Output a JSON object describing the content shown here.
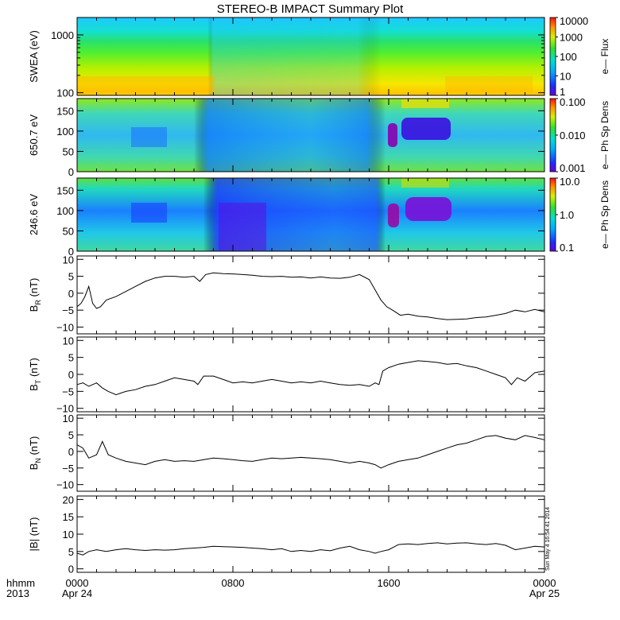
{
  "title": "STEREO-B IMPACT Summary Plot",
  "footer": {
    "corner_top": "hhmm",
    "corner_bottom": "2013",
    "stamp": "Sun May  4 16:54:41 2014"
  },
  "colors": {
    "line": "#000000",
    "frame": "#000000"
  },
  "chart_data": [
    {
      "type": "heatmap",
      "ylabel": "SWEA (eV)",
      "yscale": "log",
      "ylim": [
        90,
        2000
      ],
      "yticks": [
        {
          "v": 100,
          "t": "100"
        },
        {
          "v": 1000,
          "t": "1000"
        }
      ],
      "colorbar": {
        "label": "e— Flux",
        "scale": "log",
        "range": [
          1,
          10000
        ],
        "ticks": [
          {
            "v": 1,
            "t": "1"
          },
          {
            "v": 10,
            "t": "10"
          },
          {
            "v": 100,
            "t": "100"
          },
          {
            "v": 1000,
            "t": "1000"
          },
          {
            "v": 10000,
            "t": "10000"
          }
        ]
      }
    },
    {
      "type": "heatmap",
      "ylabel": "650.7 eV",
      "ylim": [
        0,
        180
      ],
      "yticks": [
        {
          "v": 0,
          "t": "0"
        },
        {
          "v": 50,
          "t": "50"
        },
        {
          "v": 100,
          "t": "100"
        },
        {
          "v": 150,
          "t": "150"
        }
      ],
      "colorbar": {
        "label": "e— Ph Sp Dens",
        "scale": "log",
        "range": [
          0.001,
          0.1
        ],
        "ticks": [
          {
            "v": 0.001,
            "t": "0.001"
          },
          {
            "v": 0.01,
            "t": "0.010"
          },
          {
            "v": 0.1,
            "t": "0.100"
          }
        ]
      }
    },
    {
      "type": "heatmap",
      "ylabel": "246.6 eV",
      "ylim": [
        0,
        180
      ],
      "yticks": [
        {
          "v": 0,
          "t": "0"
        },
        {
          "v": 50,
          "t": "50"
        },
        {
          "v": 100,
          "t": "100"
        },
        {
          "v": 150,
          "t": "150"
        }
      ],
      "colorbar": {
        "label": "e— Ph Sp Dens",
        "scale": "log",
        "range": [
          0.1,
          10
        ],
        "ticks": [
          {
            "v": 0.1,
            "t": "0.1"
          },
          {
            "v": 1,
            "t": "1.0"
          },
          {
            "v": 10,
            "t": "10.0"
          }
        ]
      }
    },
    {
      "type": "line",
      "ylabel": "B",
      "ysub": "R",
      "yunit": " (nT)",
      "ylim": [
        -12,
        11
      ],
      "yticks": [
        {
          "v": -10,
          "t": "−10"
        },
        {
          "v": -5,
          "t": "−5"
        },
        {
          "v": 0,
          "t": "0"
        },
        {
          "v": 5,
          "t": "5"
        },
        {
          "v": 10,
          "t": "10"
        }
      ],
      "x": [
        0,
        0.2,
        0.4,
        0.6,
        0.8,
        1.0,
        1.2,
        1.5,
        2,
        2.5,
        3,
        3.5,
        4,
        4.5,
        5,
        5.5,
        6,
        6.3,
        6.6,
        7,
        7.5,
        8,
        8.5,
        9,
        9.5,
        10,
        10.5,
        11,
        11.5,
        12,
        12.5,
        13,
        13.5,
        14,
        14.5,
        15,
        15.3,
        15.6,
        15.9,
        16.2,
        16.6,
        17,
        17.5,
        18,
        18.5,
        19,
        19.5,
        20,
        20.5,
        21,
        21.5,
        22,
        22.5,
        23,
        23.5,
        24
      ],
      "y": [
        -4,
        -3,
        -1,
        2,
        -3,
        -4.5,
        -4,
        -2,
        -1,
        0.5,
        2,
        3.5,
        4.5,
        5,
        5,
        4.7,
        5,
        3.5,
        5.5,
        6,
        5.8,
        5.7,
        5.5,
        5.3,
        5,
        4.9,
        5,
        4.7,
        4.8,
        4.5,
        4.8,
        4.5,
        4.4,
        4.7,
        5.5,
        4,
        1,
        -2,
        -4,
        -5,
        -6.5,
        -6.2,
        -6.8,
        -7,
        -7.5,
        -7.8,
        -7.7,
        -7.6,
        -7.2,
        -7,
        -6.5,
        -6,
        -5,
        -5.5,
        -4.8,
        -5.5
      ]
    },
    {
      "type": "line",
      "ylabel": "B",
      "ysub": "T",
      "yunit": " (nT)",
      "ylim": [
        -11,
        11
      ],
      "yticks": [
        {
          "v": -10,
          "t": "−10"
        },
        {
          "v": -5,
          "t": "−5"
        },
        {
          "v": 0,
          "t": "0"
        },
        {
          "v": 5,
          "t": "5"
        },
        {
          "v": 10,
          "t": "10"
        }
      ],
      "x": [
        0,
        0.3,
        0.6,
        1,
        1.3,
        1.6,
        2,
        2.5,
        3,
        3.5,
        4,
        4.5,
        5,
        5.5,
        6,
        6.2,
        6.5,
        7,
        7.5,
        8,
        8.5,
        9,
        9.5,
        10,
        10.5,
        11,
        11.5,
        12,
        12.5,
        13,
        13.5,
        14,
        14.5,
        15,
        15.3,
        15.5,
        15.7,
        16,
        16.5,
        17,
        17.5,
        18,
        18.5,
        19,
        19.5,
        20,
        20.5,
        21,
        21.5,
        22,
        22.3,
        22.6,
        23,
        23.5,
        24
      ],
      "y": [
        -3,
        -2.5,
        -3.5,
        -2.5,
        -4,
        -5,
        -6,
        -5,
        -4.5,
        -3.5,
        -3,
        -2,
        -1,
        -1.5,
        -2,
        -3,
        -0.5,
        -0.5,
        -1.5,
        -2.5,
        -2.2,
        -2.5,
        -2,
        -1.5,
        -2,
        -2.5,
        -2.2,
        -2.5,
        -2,
        -2.5,
        -3,
        -3.2,
        -3,
        -3.5,
        -2.5,
        -3,
        1,
        2,
        3,
        3.5,
        4,
        3.8,
        3.5,
        3,
        3.2,
        2.5,
        2,
        1,
        0,
        -1,
        -3,
        -1,
        -2,
        0.5,
        1
      ]
    },
    {
      "type": "line",
      "ylabel": "B",
      "ysub": "N",
      "yunit": " (nT)",
      "ylim": [
        -12,
        11
      ],
      "yticks": [
        {
          "v": -10,
          "t": "−10"
        },
        {
          "v": -5,
          "t": "−5"
        },
        {
          "v": 0,
          "t": "0"
        },
        {
          "v": 5,
          "t": "5"
        },
        {
          "v": 10,
          "t": "10"
        }
      ],
      "x": [
        0,
        0.3,
        0.6,
        1,
        1.3,
        1.6,
        2,
        2.5,
        3,
        3.5,
        4,
        4.5,
        5,
        5.5,
        6,
        6.5,
        7,
        7.5,
        8,
        8.5,
        9,
        9.5,
        10,
        10.5,
        11,
        11.5,
        12,
        12.5,
        13,
        13.5,
        14,
        14.5,
        15,
        15.3,
        15.6,
        16,
        16.5,
        17,
        17.5,
        18,
        18.5,
        19,
        19.5,
        20,
        20.5,
        21,
        21.5,
        22,
        22.5,
        23,
        23.5,
        24
      ],
      "y": [
        2,
        1,
        -2,
        -1,
        3,
        -1,
        -2,
        -3,
        -3.5,
        -4,
        -3,
        -2.5,
        -3,
        -2.8,
        -3,
        -2.5,
        -2,
        -2.2,
        -2.5,
        -2.8,
        -3,
        -2.5,
        -2,
        -2.2,
        -2,
        -1.8,
        -2,
        -2.2,
        -2.5,
        -3,
        -3.5,
        -3,
        -3.5,
        -4,
        -5,
        -4,
        -3,
        -2.5,
        -2,
        -1,
        0,
        1,
        2,
        2.5,
        3.5,
        4.5,
        4.8,
        4,
        3.5,
        4.8,
        4.2,
        3.5
      ]
    },
    {
      "type": "line",
      "ylabel": "|B|",
      "ysub": "",
      "yunit": " (nT)",
      "ylim": [
        -1,
        21
      ],
      "yticks": [
        {
          "v": 0,
          "t": "0"
        },
        {
          "v": 5,
          "t": "5"
        },
        {
          "v": 10,
          "t": "10"
        },
        {
          "v": 15,
          "t": "15"
        },
        {
          "v": 20,
          "t": "20"
        }
      ],
      "x": [
        0,
        0.3,
        0.6,
        1,
        1.5,
        2,
        2.5,
        3,
        3.5,
        4,
        4.5,
        5,
        5.5,
        6,
        6.5,
        7,
        7.5,
        8,
        8.5,
        9,
        9.5,
        10,
        10.5,
        11,
        11.5,
        12,
        12.5,
        13,
        13.5,
        14,
        14.5,
        15,
        15.3,
        15.6,
        16,
        16.5,
        17,
        17.5,
        18,
        18.5,
        19,
        19.5,
        20,
        20.5,
        21,
        21.5,
        22,
        22.5,
        23,
        23.5,
        24
      ],
      "y": [
        4.5,
        4,
        5,
        5.5,
        5,
        5.5,
        5.8,
        5.5,
        5.3,
        5.5,
        5.4,
        5.5,
        5.8,
        6,
        6.2,
        6.5,
        6.4,
        6.3,
        6.2,
        6,
        5.8,
        5.5,
        5.8,
        5,
        5.3,
        5,
        5.5,
        5.2,
        6,
        6.5,
        5.5,
        5,
        4.5,
        5,
        5.5,
        7,
        7.2,
        7,
        7.3,
        7.5,
        7.2,
        7.4,
        7.5,
        7.2,
        7,
        7.3,
        6.8,
        5.5,
        6,
        6.5,
        6.3
      ]
    }
  ],
  "xaxis": {
    "range": [
      0,
      24
    ],
    "ticks": [
      {
        "v": 0,
        "t": "0000"
      },
      {
        "v": 8,
        "t": "0800"
      },
      {
        "v": 16,
        "t": "1600"
      },
      {
        "v": 24,
        "t": "0000"
      }
    ],
    "dates": [
      {
        "v": 0,
        "t": "Apr 24"
      },
      {
        "v": 24,
        "t": "Apr 25"
      }
    ]
  }
}
